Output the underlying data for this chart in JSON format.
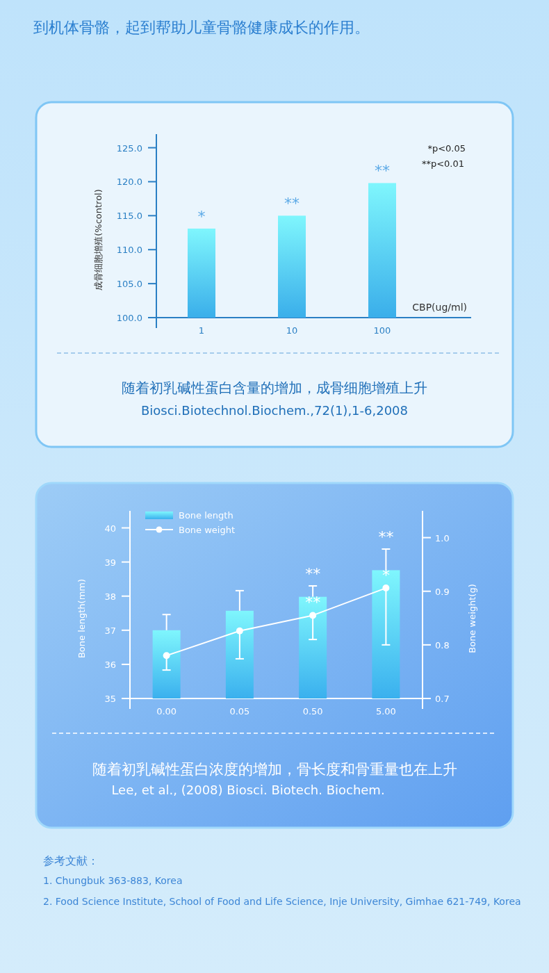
{
  "chart_data": [
    {
      "type": "bar",
      "ylabel": "成骨细胞增殖(%control)",
      "xlabel": "CBP(ug/ml)",
      "categories": [
        "1",
        "10",
        "100"
      ],
      "values": [
        113.1,
        115.0,
        119.8
      ],
      "color": "#3aaeea",
      "ylim": [
        100,
        127
      ],
      "yticks": [
        {
          "value": 100,
          "label": "100.0"
        },
        {
          "value": 105,
          "label": "105.0"
        },
        {
          "value": 110,
          "label": "110.0"
        },
        {
          "value": 115,
          "label": "115.0"
        },
        {
          "value": 120,
          "label": "120.0"
        },
        {
          "value": 125,
          "label": "125.0"
        }
      ],
      "annotations": [
        "到机体骨骼，起到帮助儿童骨骼健康成长的作用。",
        {
          "text": "*",
          "x": "1",
          "y": 113.1
        },
        {
          "text": "**",
          "x": "10",
          "y": 115.0
        },
        {
          "text": "**",
          "x": "100",
          "y": 119.8
        },
        "*p<0.05",
        "**p<0.01",
        "随着初乳碱性蛋白含量的增加，成骨细胞增殖上升",
        "Biosci.Biotechnol.Biochem.,72(1),1-6,2008"
      ]
    },
    {
      "type": "bar",
      "ylabel": "Bone length(mm)",
      "y2label": "Bone weight(g)",
      "categories": [
        "0.00",
        "0.05",
        "0.50",
        "5.00"
      ],
      "legend": "top left",
      "marker": "circle",
      "series": [
        {
          "name": "Bone length",
          "type": "bar",
          "color": "#3ab0ee",
          "values": [
            37.0,
            37.57,
            37.98,
            38.76
          ],
          "errors": [
            [
              37.0,
              37.46
            ],
            [
              37.57,
              38.16
            ],
            [
              37.98,
              38.3
            ],
            [
              38.76,
              39.38
            ]
          ]
        },
        {
          "name": "Bone weight",
          "type": "line",
          "axis": "y2",
          "color": "#ffffff",
          "values": [
            0.78,
            0.826,
            0.855,
            0.906
          ],
          "errors": [
            [
              0.753,
              0.78
            ],
            [
              0.774,
              0.826
            ],
            [
              0.81,
              0.855
            ],
            [
              0.8,
              0.906
            ]
          ]
        }
      ],
      "ylim": [
        35,
        40.5
      ],
      "yticks": [
        35,
        36,
        37,
        38,
        39,
        40
      ],
      "y2lim": [
        0.7,
        1.05
      ],
      "y2ticks": [
        0.7,
        0.8,
        0.9,
        {
          "value": 1,
          "label": "1.0"
        }
      ],
      "annotations": [
        {
          "text": "**",
          "x": "0.50",
          "y": 38.3
        },
        {
          "text": "**",
          "x": "0.50",
          "y": 37.46
        },
        {
          "text": "**",
          "x": "5.00",
          "y": 39.38
        },
        {
          "text": "*",
          "x": "5.00",
          "y": 38.26
        },
        "随着初乳碱性蛋白浓度的增加，骨长度和骨重量也在上升",
        "Lee, et al., (2008) Biosci. Biotech. Biochem.",
        "参考文献：",
        "1. Chungbuk 363-883, Korea",
        "2. Food Science Institute, School of Food and Life Science, Inje University, Gimhae 621-749, Korea"
      ]
    }
  ]
}
